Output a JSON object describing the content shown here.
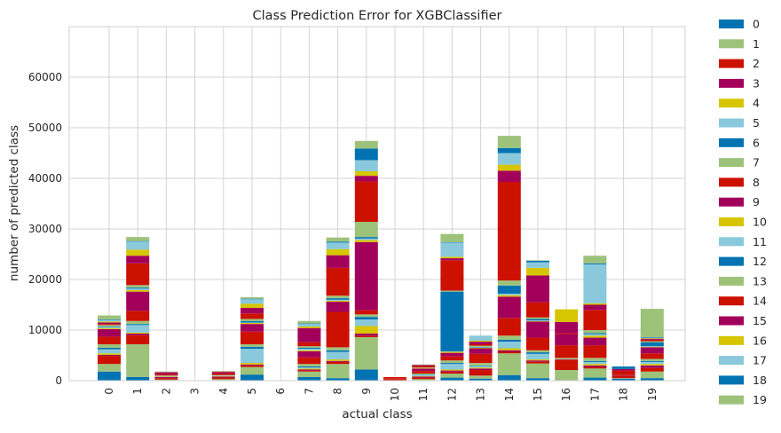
{
  "chart_data": {
    "type": "bar",
    "stacked": true,
    "title": "Class Prediction Error for XGBClassifier",
    "xlabel": "actual class",
    "ylabel": "number of predicted class",
    "ylim": [
      0,
      70000
    ],
    "yticks": [
      0,
      10000,
      20000,
      30000,
      40000,
      50000,
      60000
    ],
    "grid": true,
    "legend_position": "right",
    "categories": [
      "0",
      "1",
      "2",
      "3",
      "4",
      "5",
      "6",
      "7",
      "8",
      "9",
      "10",
      "11",
      "12",
      "13",
      "14",
      "15",
      "16",
      "17",
      "18",
      "19"
    ],
    "series": [
      {
        "name": "0",
        "color": "#0173b2",
        "values": [
          1800,
          700,
          100,
          0,
          100,
          1200,
          0,
          700,
          500,
          2200,
          0,
          100,
          600,
          400,
          1100,
          500,
          0,
          600,
          400,
          500
        ]
      },
      {
        "name": "1",
        "color": "#9dc27a",
        "values": [
          1500,
          6500,
          100,
          0,
          200,
          1500,
          0,
          1100,
          2800,
          6400,
          0,
          200,
          800,
          600,
          4300,
          2900,
          2100,
          1800,
          100,
          1300
        ]
      },
      {
        "name": "2",
        "color": "#cc1100",
        "values": [
          1600,
          1800,
          300,
          0,
          300,
          300,
          0,
          200,
          400,
          300,
          200,
          300,
          400,
          1100,
          300,
          400,
          2000,
          300,
          500,
          700
        ]
      },
      {
        "name": "3",
        "color": "#a3005c",
        "values": [
          200,
          300,
          200,
          0,
          200,
          200,
          0,
          200,
          200,
          400,
          0,
          200,
          200,
          300,
          300,
          200,
          100,
          300,
          100,
          500
        ]
      },
      {
        "name": "4",
        "color": "#d6c500",
        "values": [
          300,
          200,
          100,
          0,
          100,
          300,
          0,
          200,
          300,
          1500,
          0,
          100,
          200,
          200,
          400,
          200,
          0,
          300,
          0,
          300
        ]
      },
      {
        "name": "5",
        "color": "#8ac9db",
        "values": [
          800,
          1500,
          100,
          0,
          100,
          2800,
          0,
          200,
          1500,
          1300,
          0,
          200,
          1100,
          300,
          1300,
          1100,
          0,
          400,
          0,
          400
        ]
      },
      {
        "name": "6",
        "color": "#0173b2",
        "values": [
          300,
          200,
          0,
          0,
          0,
          400,
          0,
          200,
          300,
          500,
          0,
          100,
          200,
          100,
          400,
          300,
          0,
          200,
          0,
          200
        ]
      },
      {
        "name": "7",
        "color": "#9dc27a",
        "values": [
          700,
          600,
          100,
          0,
          100,
          500,
          0,
          500,
          600,
          500,
          0,
          200,
          500,
          500,
          800,
          400,
          300,
          600,
          0,
          400
        ]
      },
      {
        "name": "8",
        "color": "#cc1100",
        "values": [
          1500,
          2000,
          200,
          0,
          300,
          2500,
          0,
          1300,
          7000,
          800,
          200,
          500,
          800,
          1800,
          3500,
          2500,
          2500,
          2500,
          900,
          1100
        ]
      },
      {
        "name": "9",
        "color": "#a3005c",
        "values": [
          1500,
          3800,
          300,
          0,
          200,
          1500,
          0,
          1200,
          2000,
          13500,
          0,
          500,
          700,
          1100,
          4200,
          3200,
          2200,
          1500,
          300,
          1200
        ]
      },
      {
        "name": "10",
        "color": "#d6c500",
        "values": [
          200,
          300,
          0,
          0,
          0,
          200,
          0,
          200,
          200,
          400,
          0,
          100,
          200,
          100,
          300,
          100,
          0,
          400,
          0,
          100
        ]
      },
      {
        "name": "11",
        "color": "#8ac9db",
        "values": [
          200,
          300,
          0,
          0,
          0,
          100,
          0,
          300,
          200,
          300,
          0,
          0,
          100,
          100,
          300,
          100,
          0,
          300,
          0,
          100
        ]
      },
      {
        "name": "12",
        "color": "#0173b2",
        "values": [
          100,
          200,
          0,
          0,
          0,
          300,
          0,
          200,
          300,
          300,
          0,
          0,
          11800,
          100,
          1600,
          300,
          0,
          200,
          500,
          800
        ]
      },
      {
        "name": "13",
        "color": "#9dc27a",
        "values": [
          300,
          500,
          0,
          0,
          0,
          400,
          0,
          300,
          500,
          3000,
          0,
          100,
          200,
          200,
          1000,
          300,
          0,
          600,
          0,
          200
        ]
      },
      {
        "name": "14",
        "color": "#cc1100",
        "values": [
          200,
          4300,
          100,
          0,
          100,
          1100,
          0,
          800,
          5500,
          8000,
          300,
          300,
          6000,
          300,
          19500,
          3000,
          200,
          4000,
          0,
          300
        ]
      },
      {
        "name": "15",
        "color": "#a3005c",
        "values": [
          300,
          1500,
          100,
          0,
          100,
          1100,
          0,
          2800,
          2500,
          1100,
          0,
          200,
          400,
          500,
          2200,
          5300,
          2200,
          1000,
          0,
          200
        ]
      },
      {
        "name": "16",
        "color": "#d6c500",
        "values": [
          200,
          1200,
          0,
          0,
          0,
          800,
          0,
          300,
          1200,
          900,
          0,
          0,
          300,
          200,
          1200,
          1500,
          2500,
          300,
          0,
          100
        ]
      },
      {
        "name": "17",
        "color": "#8ac9db",
        "values": [
          300,
          1600,
          0,
          0,
          0,
          900,
          0,
          500,
          1300,
          2200,
          0,
          0,
          2800,
          1000,
          2300,
          1100,
          0,
          7700,
          0,
          100
        ]
      },
      {
        "name": "18",
        "color": "#0173b2",
        "values": [
          100,
          100,
          0,
          0,
          0,
          100,
          0,
          100,
          200,
          2300,
          0,
          0,
          100,
          0,
          1000,
          300,
          0,
          200,
          0,
          100
        ]
      },
      {
        "name": "19",
        "color": "#9dc27a",
        "values": [
          800,
          800,
          100,
          0,
          100,
          300,
          0,
          500,
          800,
          1500,
          0,
          100,
          1600,
          0,
          2400,
          100,
          0,
          1500,
          0,
          5600
        ]
      }
    ]
  }
}
